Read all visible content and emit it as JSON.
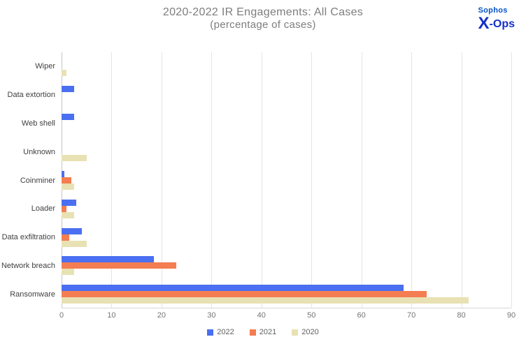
{
  "logo": {
    "brand": "Sophos",
    "x": "X",
    "ops": "-Ops"
  },
  "chart_data": {
    "type": "bar",
    "orientation": "horizontal",
    "title": "2020-2022 IR Engagements: All Cases",
    "subtitle": "(percentage of cases)",
    "xlabel": "",
    "ylabel": "",
    "categories": [
      "Wiper",
      "Data extortion",
      "Web shell",
      "Unknown",
      "Coinminer",
      "Loader",
      "Data exfiltration",
      "Network breach",
      "Ransomware"
    ],
    "series": [
      {
        "name": "2022",
        "color": "#4a6ff0",
        "values": [
          0,
          2.5,
          2.5,
          0,
          0.5,
          3,
          4,
          18.5,
          68.5
        ]
      },
      {
        "name": "2021",
        "color": "#f47d51",
        "values": [
          0,
          0,
          0,
          0,
          2,
          1,
          1.5,
          23,
          73
        ]
      },
      {
        "name": "2020",
        "color": "#e8e1b4",
        "values": [
          1,
          0,
          0,
          5,
          2.5,
          2.5,
          5,
          2.5,
          81.5
        ]
      }
    ],
    "xlim": [
      0,
      90
    ],
    "xticks": [
      0,
      10,
      20,
      30,
      40,
      50,
      60,
      70,
      80,
      90
    ],
    "grid": true,
    "legend_position": "bottom"
  }
}
